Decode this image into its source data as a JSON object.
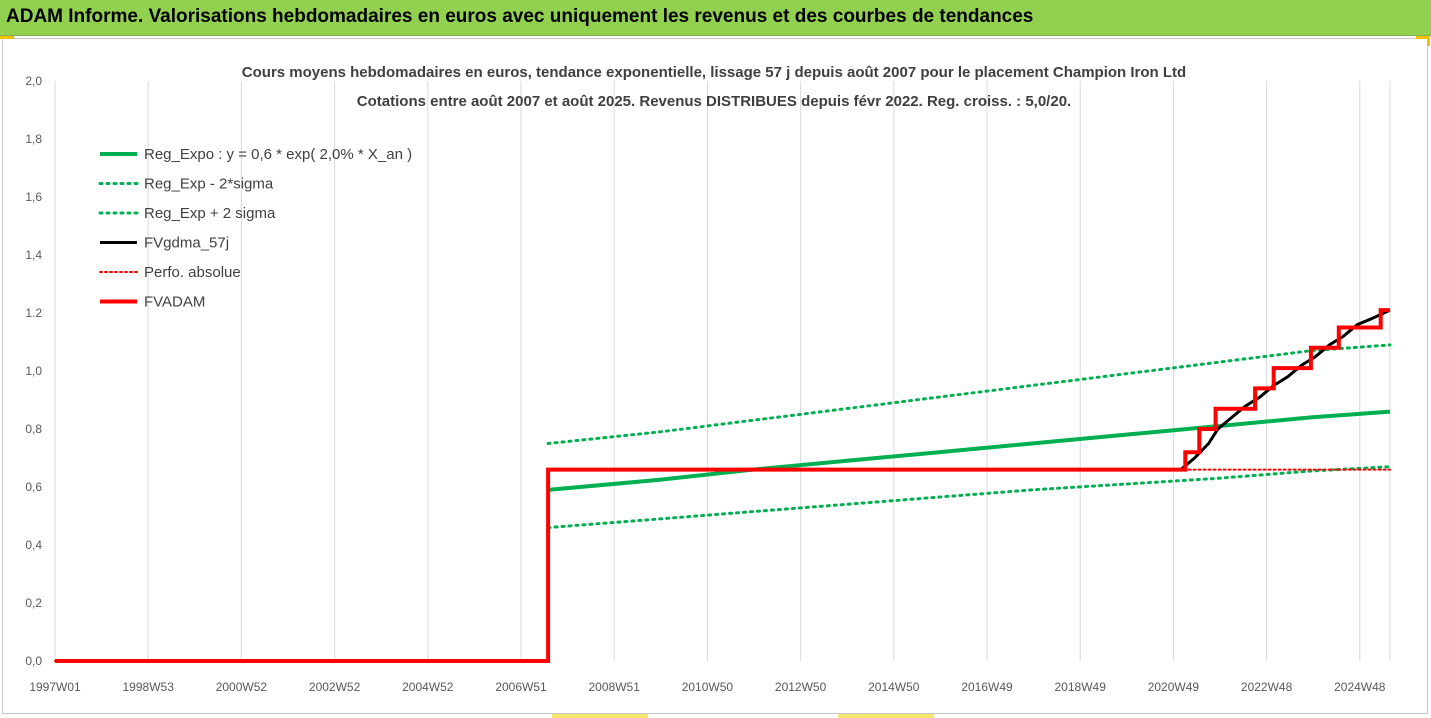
{
  "banner": {
    "title": "ADAM Informe. Valorisations hebdomadaires en euros avec uniquement les revenus et des courbes de tendances"
  },
  "colors": {
    "banner_bg": "#92d050",
    "green": "#00b050",
    "black": "#000000",
    "red": "#ff0000",
    "grid": "#d9d9d9"
  },
  "chart_data": {
    "type": "line",
    "title": "Cours moyens hebdomadaires en euros, tendance exponentielle, lissage 57 j depuis août 2007 pour le placement Champion Iron Ltd",
    "subtitle": "Cotations entre août 2007 et août 2025. Revenus DISTRIBUES depuis févr 2022. Reg. croiss. : 5,0/20.",
    "xlabel": "",
    "ylabel": "",
    "x_tick_labels": [
      "1997W01",
      "1998W53",
      "2000W52",
      "2002W52",
      "2004W52",
      "2006W51",
      "2008W51",
      "2010W50",
      "2012W50",
      "2014W50",
      "2016W49",
      "2018W49",
      "2020W49",
      "2022W48",
      "2024W48"
    ],
    "x_range": [
      1997.0,
      2025.7
    ],
    "y_tick_labels": [
      "0,0",
      "0,2",
      "0,4",
      "0,6",
      "0,8",
      "1,0",
      "1.2",
      "1,4",
      "1,6",
      "1,8",
      "2,0"
    ],
    "ylim": [
      0,
      2.0
    ],
    "grid": "vertical",
    "legend_position": "top-left",
    "series": [
      {
        "name": "Reg_Expo : y = 0,6 * exp( 2,0% *  X_an )",
        "style": "solid-green",
        "x": [
          2007.6,
          2010,
          2012,
          2014,
          2016,
          2018,
          2020,
          2022,
          2024,
          2025.7
        ],
        "y": [
          0.59,
          0.625,
          0.66,
          0.69,
          0.72,
          0.75,
          0.78,
          0.81,
          0.84,
          0.86
        ]
      },
      {
        "name": "Reg_Exp - 2*sigma",
        "style": "dotted-green",
        "x": [
          2007.6,
          2010,
          2012,
          2014,
          2016,
          2018,
          2020,
          2022,
          2024,
          2025.7
        ],
        "y": [
          0.46,
          0.49,
          0.515,
          0.54,
          0.565,
          0.59,
          0.61,
          0.63,
          0.655,
          0.67
        ]
      },
      {
        "name": "Reg_Exp + 2 sigma",
        "style": "dotted-green",
        "x": [
          2007.6,
          2010,
          2012,
          2014,
          2016,
          2018,
          2020,
          2022,
          2024,
          2025.7
        ],
        "y": [
          0.75,
          0.79,
          0.83,
          0.87,
          0.91,
          0.95,
          0.99,
          1.03,
          1.07,
          1.09
        ]
      },
      {
        "name": "FVgdma_57j",
        "style": "solid-black",
        "x": [
          1997.0,
          2007.6,
          2007.6,
          2021.2,
          2021.5,
          2021.8,
          2022.0,
          2022.3,
          2022.6,
          2022.9,
          2023.2,
          2023.5,
          2023.8,
          2024.1,
          2024.4,
          2024.7,
          2025.0,
          2025.3,
          2025.7
        ],
        "y": [
          0.0,
          0.0,
          0.66,
          0.66,
          0.7,
          0.75,
          0.8,
          0.84,
          0.88,
          0.91,
          0.95,
          0.98,
          1.02,
          1.05,
          1.09,
          1.12,
          1.16,
          1.18,
          1.21
        ]
      },
      {
        "name": "Perfo. absolue",
        "style": "dotted-red",
        "x": [
          1997.0,
          2007.6,
          2007.6,
          2025.7
        ],
        "y": [
          0.0,
          0.0,
          0.66,
          0.66
        ]
      },
      {
        "name": "FVADAM",
        "style": "solid-red",
        "x": [
          1997.0,
          2007.6,
          2007.6,
          2021.3,
          2021.3,
          2021.6,
          2021.6,
          2021.95,
          2021.95,
          2022.3,
          2022.3,
          2022.8,
          2022.8,
          2023.2,
          2023.2,
          2023.6,
          2023.6,
          2024.0,
          2024.0,
          2024.6,
          2024.6,
          2025.0,
          2025.0,
          2025.5,
          2025.5,
          2025.7
        ],
        "y": [
          0.0,
          0.0,
          0.66,
          0.66,
          0.72,
          0.72,
          0.8,
          0.8,
          0.87,
          0.87,
          0.87,
          0.87,
          0.94,
          0.94,
          1.01,
          1.01,
          1.01,
          1.01,
          1.08,
          1.08,
          1.15,
          1.15,
          1.15,
          1.15,
          1.21,
          1.21
        ]
      }
    ]
  }
}
